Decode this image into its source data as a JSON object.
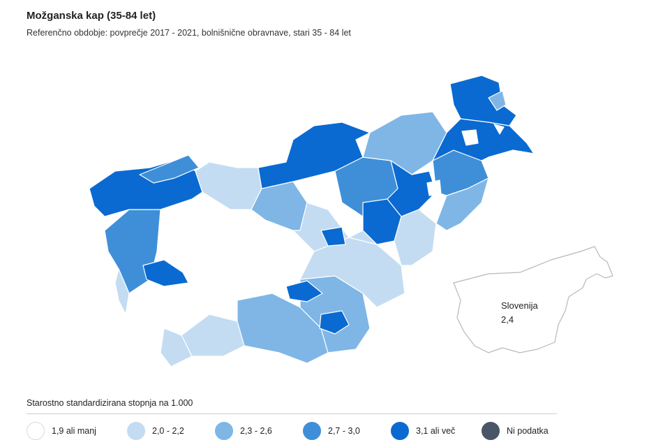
{
  "title": "Možganska kap (35-84 let)",
  "subtitle": "Referenčno obdobje: povprečje 2017 - 2021, bolnišnične obravnave, stari 35 - 84 let",
  "legend": {
    "title": "Starostno standardizirana stopnja na 1.000",
    "items": [
      {
        "label": "1,9 ali manj",
        "color": "#ffffff",
        "border": "#d9d9d9"
      },
      {
        "label": "2,0 - 2,2",
        "color": "#c3dcf2",
        "border": "#c3dcf2"
      },
      {
        "label": "2,3 - 2,6",
        "color": "#7fb6e6",
        "border": "#7fb6e6"
      },
      {
        "label": "2,7 - 3,0",
        "color": "#3f8fd8",
        "border": "#3f8fd8"
      },
      {
        "label": "3,1 ali več",
        "color": "#0a6ad1",
        "border": "#0a6ad1"
      },
      {
        "label": "Ni podatka",
        "color": "#4a5568",
        "border": "#4a5568"
      }
    ]
  },
  "inset": {
    "name": "Slovenija",
    "value": "2,4"
  },
  "map_colors": {
    "white": "#ffffff",
    "light": "#c3dcf2",
    "mid": "#7fb6e6",
    "strong": "#3f8fd8",
    "dark": "#0a6ad1",
    "border": "#ffffff",
    "inset_border": "#b8b8b8"
  }
}
